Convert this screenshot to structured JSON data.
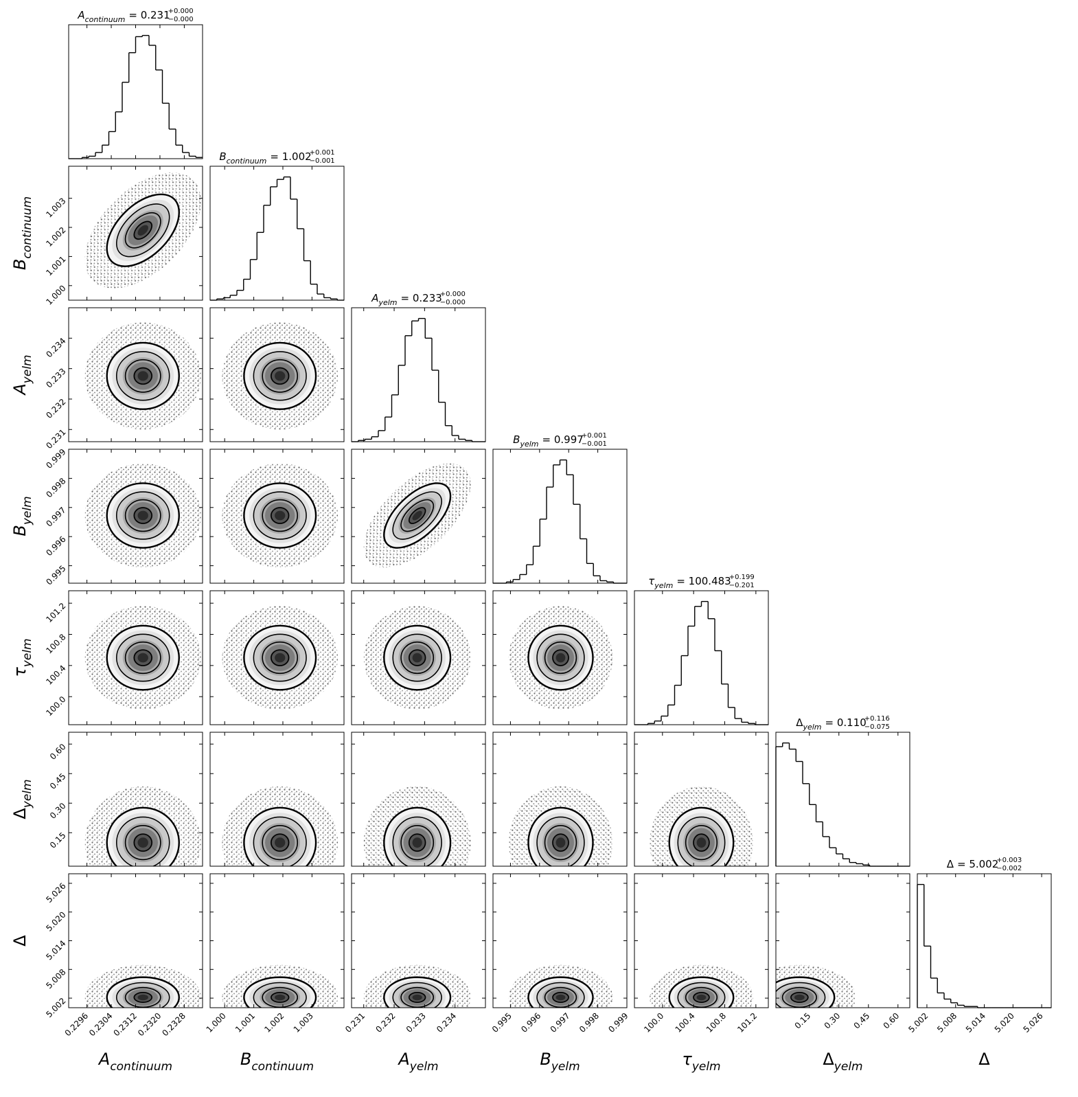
{
  "chart_data": {
    "type": "corner",
    "parameters": [
      {
        "symbol": "A",
        "subscript": "continuum",
        "value": "= 0.231",
        "plus": "+0.000",
        "minus": "−0.000",
        "lim": [
          0.229,
          0.2334
        ],
        "ticks": [
          0.2296,
          0.2304,
          0.2312,
          {
            "value": 0.232,
            "label": "0.2320"
          },
          0.2328
        ],
        "bins": [
          0.229,
          0.22922,
          0.22944,
          0.22966,
          0.22988,
          0.2301,
          0.23032,
          0.23054,
          0.23076,
          0.23098,
          0.2312,
          0.23142,
          0.23164,
          0.23186,
          0.23208,
          0.2323,
          0.23252,
          0.23274,
          0.23296,
          0.23318,
          0.2334
        ],
        "counts": [
          0,
          0,
          1,
          2,
          5,
          11,
          22,
          38,
          62,
          86,
          99,
          100,
          92,
          72,
          45,
          24,
          11,
          5,
          2,
          1
        ]
      },
      {
        "symbol": "B",
        "subscript": "continuum",
        "value": "= 1.002",
        "plus": "+0.001",
        "minus": "−0.001",
        "lim": [
          0.9995,
          1.0041
        ],
        "ticks": [
          {
            "value": 1,
            "label": "1.000"
          },
          1.001,
          1.002,
          1.003
        ],
        "bins": [
          0.9995,
          0.99973,
          0.99996,
          1.00019,
          1.00042,
          1.00065,
          1.00088,
          1.00111,
          1.00134,
          1.00157,
          1.0018,
          1.00203,
          1.00226,
          1.00249,
          1.00272,
          1.00295,
          1.00318,
          1.00341,
          1.00364,
          1.00387,
          1.0041
        ],
        "counts": [
          0,
          1,
          2,
          4,
          8,
          17,
          33,
          55,
          77,
          92,
          98,
          100,
          82,
          58,
          32,
          13,
          5,
          2,
          1,
          0
        ]
      },
      {
        "symbol": "A",
        "subscript": "yelm",
        "value": "= 0.233",
        "plus": "+0.000",
        "minus": "−0.000",
        "lim": [
          0.2306,
          0.235
        ],
        "ticks": [
          0.231,
          0.232,
          0.233,
          0.234
        ],
        "bins": [
          0.2306,
          0.23082,
          0.23104,
          0.23126,
          0.23148,
          0.2317,
          0.23192,
          0.23214,
          0.23236,
          0.23258,
          0.2328,
          0.23302,
          0.23324,
          0.23346,
          0.23368,
          0.2339,
          0.23412,
          0.23434,
          0.23456,
          0.23478,
          0.235
        ],
        "counts": [
          0,
          1,
          2,
          4,
          9,
          20,
          38,
          62,
          86,
          98,
          100,
          84,
          58,
          32,
          13,
          5,
          2,
          1,
          0,
          0
        ]
      },
      {
        "symbol": "B",
        "subscript": "yelm",
        "value": "= 0.997",
        "plus": "+0.001",
        "minus": "−0.001",
        "lim": [
          0.9944,
          0.999
        ],
        "ticks": [
          0.995,
          0.996,
          0.997,
          0.998,
          0.999
        ],
        "bins": [
          0.9944,
          0.99463,
          0.99486,
          0.99509,
          0.99532,
          0.99555,
          0.99578,
          0.99601,
          0.99624,
          0.99647,
          0.9967,
          0.99693,
          0.99716,
          0.99739,
          0.99762,
          0.99785,
          0.99808,
          0.99831,
          0.99854,
          0.99877,
          0.999
        ],
        "counts": [
          0,
          0,
          1,
          3,
          7,
          15,
          30,
          52,
          78,
          96,
          100,
          88,
          64,
          36,
          16,
          6,
          2,
          1,
          0,
          0
        ]
      },
      {
        "symbol": "τ",
        "subscript": "yelm",
        "value": "= 100.483",
        "plus": "+0.199",
        "minus": "−0.201",
        "lim": [
          99.64,
          101.36
        ],
        "ticks": [
          {
            "value": 100,
            "label": "100.0"
          },
          100.4,
          100.8,
          101.2
        ],
        "bins": [
          99.64,
          99.726,
          99.812,
          99.898,
          99.984,
          100.07,
          100.156,
          100.242,
          100.328,
          100.414,
          100.5,
          100.586,
          100.672,
          100.758,
          100.844,
          100.93,
          101.016,
          101.102,
          101.188,
          101.274,
          101.36
        ],
        "counts": [
          0,
          0,
          1,
          3,
          7,
          16,
          32,
          56,
          80,
          96,
          100,
          86,
          60,
          33,
          14,
          5,
          2,
          1,
          0,
          0
        ]
      },
      {
        "symbol": "Δ",
        "subscript": "yelm",
        "value": "= 0.110",
        "plus": "+0.116",
        "minus": "−0.075",
        "lim": [
          -0.02,
          0.66
        ],
        "ticks": [
          0.15,
          {
            "value": 0.3,
            "label": "0.30"
          },
          0.45,
          {
            "value": 0.6,
            "label": "0.60"
          }
        ],
        "bins": [
          -0.02,
          0.014,
          0.048,
          0.082,
          0.116,
          0.15,
          0.184,
          0.218,
          0.252,
          0.286,
          0.32,
          0.354,
          0.388,
          0.422,
          0.456,
          0.49,
          0.524,
          0.558,
          0.592,
          0.626,
          0.66
        ],
        "counts": [
          97,
          100,
          95,
          85,
          67,
          50,
          36,
          24,
          15,
          10,
          6,
          3,
          2,
          1,
          0,
          0,
          0,
          0,
          0,
          0
        ]
      },
      {
        "symbol": "Δ",
        "value": "= 5.002",
        "plus": "+0.003",
        "minus": "−0.002",
        "lim": [
          5.0,
          5.028
        ],
        "ticks": [
          5.002,
          5.008,
          5.014,
          {
            "value": 5.02,
            "label": "5.020"
          },
          5.026
        ],
        "bins": [
          5.0,
          5.0014,
          5.0028,
          5.0042,
          5.0056,
          5.007,
          5.0084,
          5.0098,
          5.0112,
          5.0126,
          5.014,
          5.0154,
          5.0168,
          5.0182,
          5.0196,
          5.021,
          5.0224,
          5.0238,
          5.0252,
          5.0266,
          5.028
        ],
        "counts": [
          100,
          50,
          24,
          12,
          7,
          4,
          2,
          1,
          1,
          0,
          0,
          0,
          0,
          0,
          0,
          0,
          0,
          0,
          0,
          0
        ]
      }
    ],
    "correlations": [
      [
        0.5
      ],
      [
        0,
        0
      ],
      [
        0,
        0,
        0.6
      ],
      [
        0,
        0,
        0,
        0
      ],
      [
        0,
        0,
        0,
        0,
        0
      ],
      [
        0,
        0,
        0,
        0,
        0,
        0
      ]
    ]
  }
}
